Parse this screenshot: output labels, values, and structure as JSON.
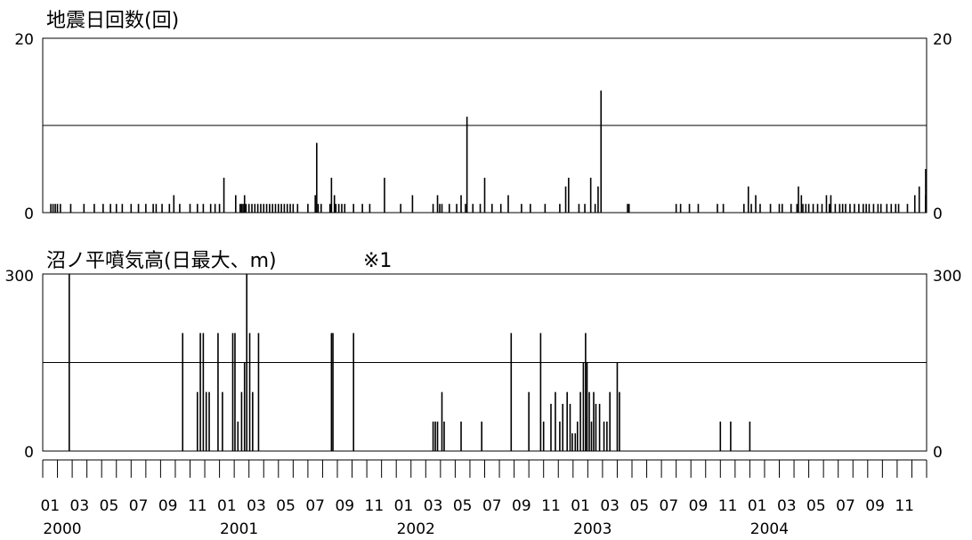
{
  "chart_data": [
    {
      "type": "bar",
      "title": "地震日回数(回)",
      "ylim": [
        0,
        20
      ],
      "y_ticks": [
        "0",
        "20"
      ],
      "gridlines": [
        10
      ],
      "x_unit": "month index from 2000-01 (0 = 2000-01)",
      "bars": [
        [
          0.05,
          1
        ],
        [
          0.2,
          1
        ],
        [
          0.35,
          1
        ],
        [
          0.5,
          1
        ],
        [
          0.7,
          1
        ],
        [
          1.4,
          1
        ],
        [
          2.3,
          1
        ],
        [
          3.0,
          1
        ],
        [
          3.6,
          1
        ],
        [
          4.1,
          1
        ],
        [
          4.5,
          1
        ],
        [
          4.9,
          1
        ],
        [
          5.5,
          1
        ],
        [
          6.0,
          1
        ],
        [
          6.5,
          1
        ],
        [
          7.0,
          1
        ],
        [
          7.2,
          1
        ],
        [
          7.6,
          1
        ],
        [
          8.1,
          1
        ],
        [
          8.4,
          2
        ],
        [
          8.8,
          1
        ],
        [
          9.5,
          1
        ],
        [
          10.0,
          1
        ],
        [
          10.4,
          1
        ],
        [
          10.9,
          1
        ],
        [
          11.2,
          1
        ],
        [
          11.5,
          1
        ],
        [
          11.8,
          4
        ],
        [
          12.6,
          2
        ],
        [
          12.9,
          1
        ],
        [
          13.0,
          1
        ],
        [
          13.1,
          1
        ],
        [
          13.2,
          2
        ],
        [
          13.3,
          1
        ],
        [
          13.5,
          1
        ],
        [
          13.7,
          1
        ],
        [
          13.9,
          1
        ],
        [
          14.1,
          1
        ],
        [
          14.3,
          1
        ],
        [
          14.5,
          1
        ],
        [
          14.7,
          1
        ],
        [
          14.9,
          1
        ],
        [
          15.1,
          1
        ],
        [
          15.3,
          1
        ],
        [
          15.5,
          1
        ],
        [
          15.7,
          1
        ],
        [
          15.9,
          1
        ],
        [
          16.1,
          1
        ],
        [
          16.3,
          1
        ],
        [
          16.5,
          1
        ],
        [
          16.8,
          1
        ],
        [
          17.5,
          1
        ],
        [
          18.0,
          2
        ],
        [
          18.1,
          8
        ],
        [
          18.2,
          1
        ],
        [
          18.4,
          1
        ],
        [
          19.0,
          1
        ],
        [
          19.1,
          4
        ],
        [
          19.3,
          2
        ],
        [
          19.4,
          1
        ],
        [
          19.6,
          1
        ],
        [
          19.8,
          1
        ],
        [
          20.0,
          1
        ],
        [
          20.6,
          1
        ],
        [
          21.2,
          1
        ],
        [
          21.7,
          1
        ],
        [
          22.7,
          4
        ],
        [
          23.8,
          1
        ],
        [
          24.6,
          2
        ],
        [
          26.0,
          1
        ],
        [
          26.3,
          2
        ],
        [
          26.45,
          1
        ],
        [
          26.6,
          1
        ],
        [
          27.1,
          1
        ],
        [
          27.6,
          1
        ],
        [
          27.9,
          2
        ],
        [
          28.2,
          1
        ],
        [
          28.3,
          11
        ],
        [
          28.7,
          1
        ],
        [
          29.2,
          1
        ],
        [
          29.5,
          4
        ],
        [
          30.0,
          1
        ],
        [
          30.6,
          1
        ],
        [
          31.1,
          2
        ],
        [
          32.0,
          1
        ],
        [
          32.6,
          1
        ],
        [
          33.6,
          1
        ],
        [
          34.6,
          1
        ],
        [
          35.0,
          3
        ],
        [
          35.2,
          4
        ],
        [
          35.9,
          1
        ],
        [
          36.3,
          1
        ],
        [
          36.7,
          4
        ],
        [
          37.0,
          1
        ],
        [
          37.2,
          3
        ],
        [
          37.4,
          14
        ],
        [
          39.2,
          1
        ],
        [
          39.3,
          1
        ],
        [
          42.5,
          1
        ],
        [
          42.8,
          1
        ],
        [
          43.4,
          1
        ],
        [
          44.0,
          1
        ],
        [
          45.3,
          1
        ],
        [
          45.7,
          1
        ],
        [
          47.1,
          1
        ],
        [
          47.4,
          3
        ],
        [
          47.6,
          1
        ],
        [
          47.9,
          2
        ],
        [
          48.2,
          1
        ],
        [
          48.9,
          1
        ],
        [
          49.5,
          1
        ],
        [
          49.7,
          1
        ],
        [
          50.3,
          1
        ],
        [
          50.7,
          1
        ],
        [
          50.8,
          3
        ],
        [
          51.0,
          2
        ],
        [
          51.1,
          1
        ],
        [
          51.3,
          1
        ],
        [
          51.5,
          1
        ],
        [
          51.8,
          1
        ],
        [
          52.1,
          1
        ],
        [
          52.4,
          1
        ],
        [
          52.7,
          2
        ],
        [
          52.9,
          1
        ],
        [
          53.0,
          2
        ],
        [
          53.3,
          1
        ],
        [
          53.6,
          1
        ],
        [
          53.8,
          1
        ],
        [
          54.0,
          1
        ],
        [
          54.3,
          1
        ],
        [
          54.6,
          1
        ],
        [
          54.9,
          1
        ],
        [
          55.2,
          1
        ],
        [
          55.4,
          1
        ],
        [
          55.6,
          1
        ],
        [
          55.9,
          1
        ],
        [
          56.2,
          1
        ],
        [
          56.4,
          1
        ],
        [
          56.8,
          1
        ],
        [
          57.1,
          1
        ],
        [
          57.4,
          1
        ],
        [
          57.6,
          1
        ],
        [
          58.2,
          1
        ],
        [
          58.7,
          2
        ],
        [
          59.0,
          3
        ],
        [
          60.0,
          1
        ],
        [
          60.2,
          5
        ],
        [
          60.4,
          1
        ],
        [
          60.6,
          1
        ],
        [
          61.6,
          1
        ],
        [
          61.8,
          1
        ],
        [
          61.9,
          1
        ],
        [
          62.1,
          2
        ]
      ]
    },
    {
      "type": "bar",
      "title": "沼ノ平噴気高(日最大、m)",
      "note": "※1",
      "ylim": [
        0,
        300
      ],
      "y_ticks": [
        "0",
        "300"
      ],
      "gridlines": [
        150
      ],
      "x_unit": "month index from 2000-01 (0 = 2000-01)",
      "bars": [
        [
          1.3,
          300
        ],
        [
          9.0,
          200
        ],
        [
          10.0,
          100
        ],
        [
          10.2,
          200
        ],
        [
          10.4,
          200
        ],
        [
          10.6,
          100
        ],
        [
          10.8,
          100
        ],
        [
          11.4,
          200
        ],
        [
          11.7,
          100
        ],
        [
          12.4,
          200
        ],
        [
          12.55,
          200
        ],
        [
          12.75,
          50
        ],
        [
          13.0,
          100
        ],
        [
          13.2,
          150
        ],
        [
          13.35,
          300
        ],
        [
          13.55,
          200
        ],
        [
          13.75,
          100
        ],
        [
          14.15,
          200
        ],
        [
          19.1,
          200
        ],
        [
          19.2,
          200
        ],
        [
          20.6,
          200
        ],
        [
          26.0,
          50
        ],
        [
          26.15,
          50
        ],
        [
          26.3,
          50
        ],
        [
          26.6,
          100
        ],
        [
          26.75,
          50
        ],
        [
          27.9,
          50
        ],
        [
          29.3,
          50
        ],
        [
          31.3,
          200
        ],
        [
          32.5,
          100
        ],
        [
          33.3,
          200
        ],
        [
          33.5,
          50
        ],
        [
          34.0,
          80
        ],
        [
          34.3,
          100
        ],
        [
          34.6,
          50
        ],
        [
          34.8,
          80
        ],
        [
          35.1,
          100
        ],
        [
          35.3,
          80
        ],
        [
          35.45,
          30
        ],
        [
          35.65,
          30
        ],
        [
          35.8,
          50
        ],
        [
          36.0,
          100
        ],
        [
          36.2,
          150
        ],
        [
          36.35,
          200
        ],
        [
          36.45,
          150
        ],
        [
          36.6,
          100
        ],
        [
          36.75,
          50
        ],
        [
          36.9,
          100
        ],
        [
          37.05,
          80
        ],
        [
          37.3,
          80
        ],
        [
          37.6,
          50
        ],
        [
          37.8,
          50
        ],
        [
          38.0,
          100
        ],
        [
          38.5,
          150
        ],
        [
          38.65,
          100
        ],
        [
          45.5,
          50
        ],
        [
          46.2,
          50
        ],
        [
          47.5,
          50
        ]
      ]
    }
  ],
  "x_axis": {
    "month_labels": [
      "01",
      "03",
      "05",
      "07",
      "09",
      "11",
      "01",
      "03",
      "05",
      "07",
      "09",
      "11",
      "01",
      "03",
      "05",
      "07",
      "09",
      "11",
      "01",
      "03",
      "05",
      "07",
      "09",
      "11",
      "01",
      "03",
      "05",
      "07",
      "09",
      "11"
    ],
    "year_labels": [
      "2000",
      "2001",
      "2002",
      "2003",
      "2004"
    ]
  }
}
